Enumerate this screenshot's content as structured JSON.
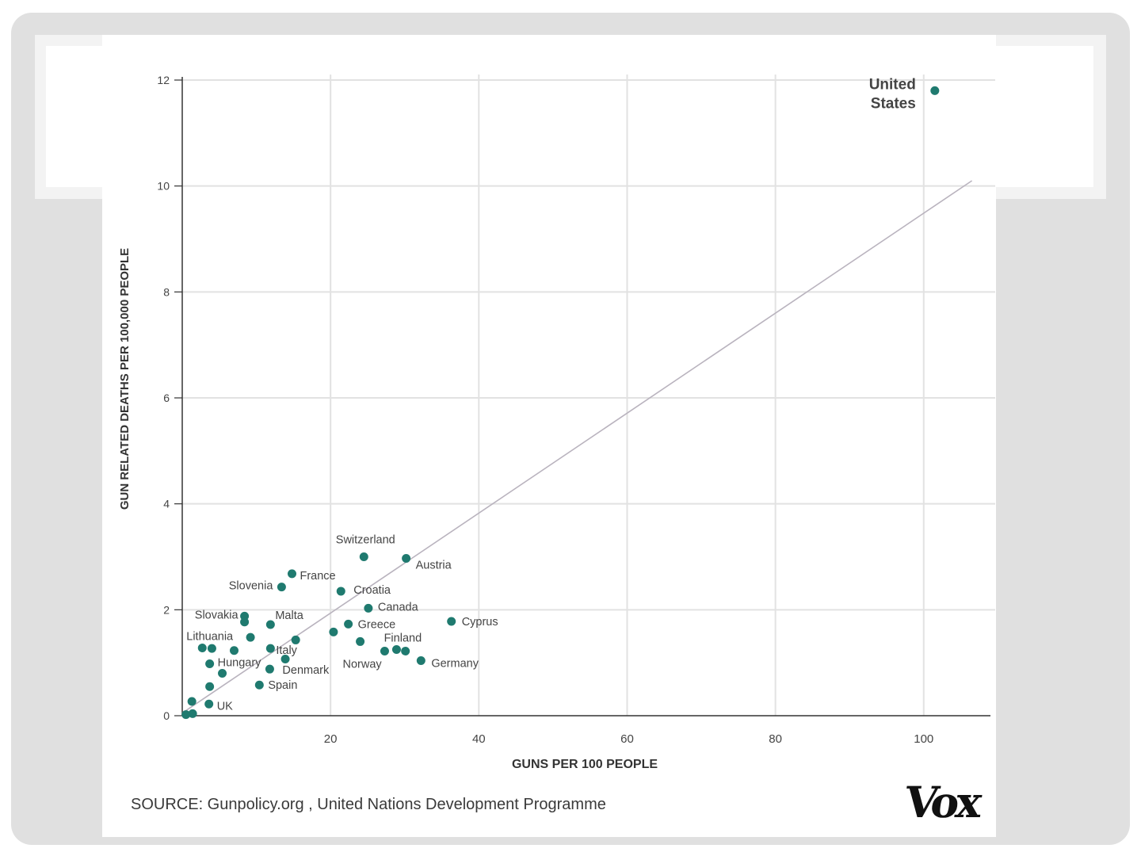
{
  "footer": {
    "source": "SOURCE: Gunpolicy.org , United Nations Development Programme",
    "logo": "Vox"
  },
  "colors": {
    "point": "#1f7a6f",
    "trend": "#b9b3be",
    "grid": "#e2e2e2",
    "axis": "#333333",
    "label": "#444444"
  },
  "chart_data": {
    "type": "scatter",
    "xlabel": "GUNS PER 100 PEOPLE",
    "ylabel": "GUN RELATED DEATHS PER 100,000 PEOPLE",
    "xlim": [
      0,
      109
    ],
    "ylim": [
      0,
      12.1
    ],
    "xticks": [
      20,
      40,
      60,
      80,
      100
    ],
    "yticks": [
      0,
      2,
      4,
      6,
      8,
      10,
      12
    ],
    "grid": true,
    "trendline": {
      "x": [
        0,
        106.5
      ],
      "y": [
        0.05,
        10.1
      ]
    },
    "points": [
      {
        "name": "United States",
        "x": 101.5,
        "y": 11.8
      },
      {
        "name": "Switzerland",
        "x": 24.5,
        "y": 3.0
      },
      {
        "name": "Austria",
        "x": 30.2,
        "y": 2.97
      },
      {
        "name": "France",
        "x": 14.8,
        "y": 2.68
      },
      {
        "name": "Slovenia",
        "x": 13.4,
        "y": 2.43
      },
      {
        "name": "Croatia",
        "x": 21.4,
        "y": 2.35
      },
      {
        "name": "Canada",
        "x": 25.1,
        "y": 2.03
      },
      {
        "name": "Cyprus",
        "x": 36.3,
        "y": 1.78
      },
      {
        "name": "Slovakia",
        "x": 8.4,
        "y": 1.88
      },
      {
        "name": "",
        "x": 8.4,
        "y": 1.77
      },
      {
        "name": "Malta",
        "x": 11.9,
        "y": 1.72
      },
      {
        "name": "Greece",
        "x": 22.4,
        "y": 1.73
      },
      {
        "name": "",
        "x": 20.4,
        "y": 1.58
      },
      {
        "name": "",
        "x": 9.2,
        "y": 1.48
      },
      {
        "name": "",
        "x": 15.3,
        "y": 1.43
      },
      {
        "name": "Finland",
        "x": 24.0,
        "y": 1.4
      },
      {
        "name": "Lithuania",
        "x": 2.7,
        "y": 1.28
      },
      {
        "name": "",
        "x": 4.0,
        "y": 1.27
      },
      {
        "name": "",
        "x": 7.0,
        "y": 1.23
      },
      {
        "name": "Italy",
        "x": 11.9,
        "y": 1.27
      },
      {
        "name": "",
        "x": 27.3,
        "y": 1.22
      },
      {
        "name": "",
        "x": 28.9,
        "y": 1.25
      },
      {
        "name": "Norway",
        "x": 30.1,
        "y": 1.22
      },
      {
        "name": "Hungary",
        "x": 3.7,
        "y": 0.98
      },
      {
        "name": "",
        "x": 13.9,
        "y": 1.07
      },
      {
        "name": "Germany",
        "x": 32.2,
        "y": 1.04
      },
      {
        "name": "Denmark",
        "x": 11.8,
        "y": 0.88
      },
      {
        "name": "",
        "x": 5.4,
        "y": 0.8
      },
      {
        "name": "Spain",
        "x": 10.4,
        "y": 0.58
      },
      {
        "name": "",
        "x": 3.7,
        "y": 0.55
      },
      {
        "name": "",
        "x": 1.3,
        "y": 0.27
      },
      {
        "name": "UK",
        "x": 3.6,
        "y": 0.22
      },
      {
        "name": "",
        "x": 1.4,
        "y": 0.04
      },
      {
        "name": "",
        "x": 0.5,
        "y": 0.02
      }
    ]
  }
}
